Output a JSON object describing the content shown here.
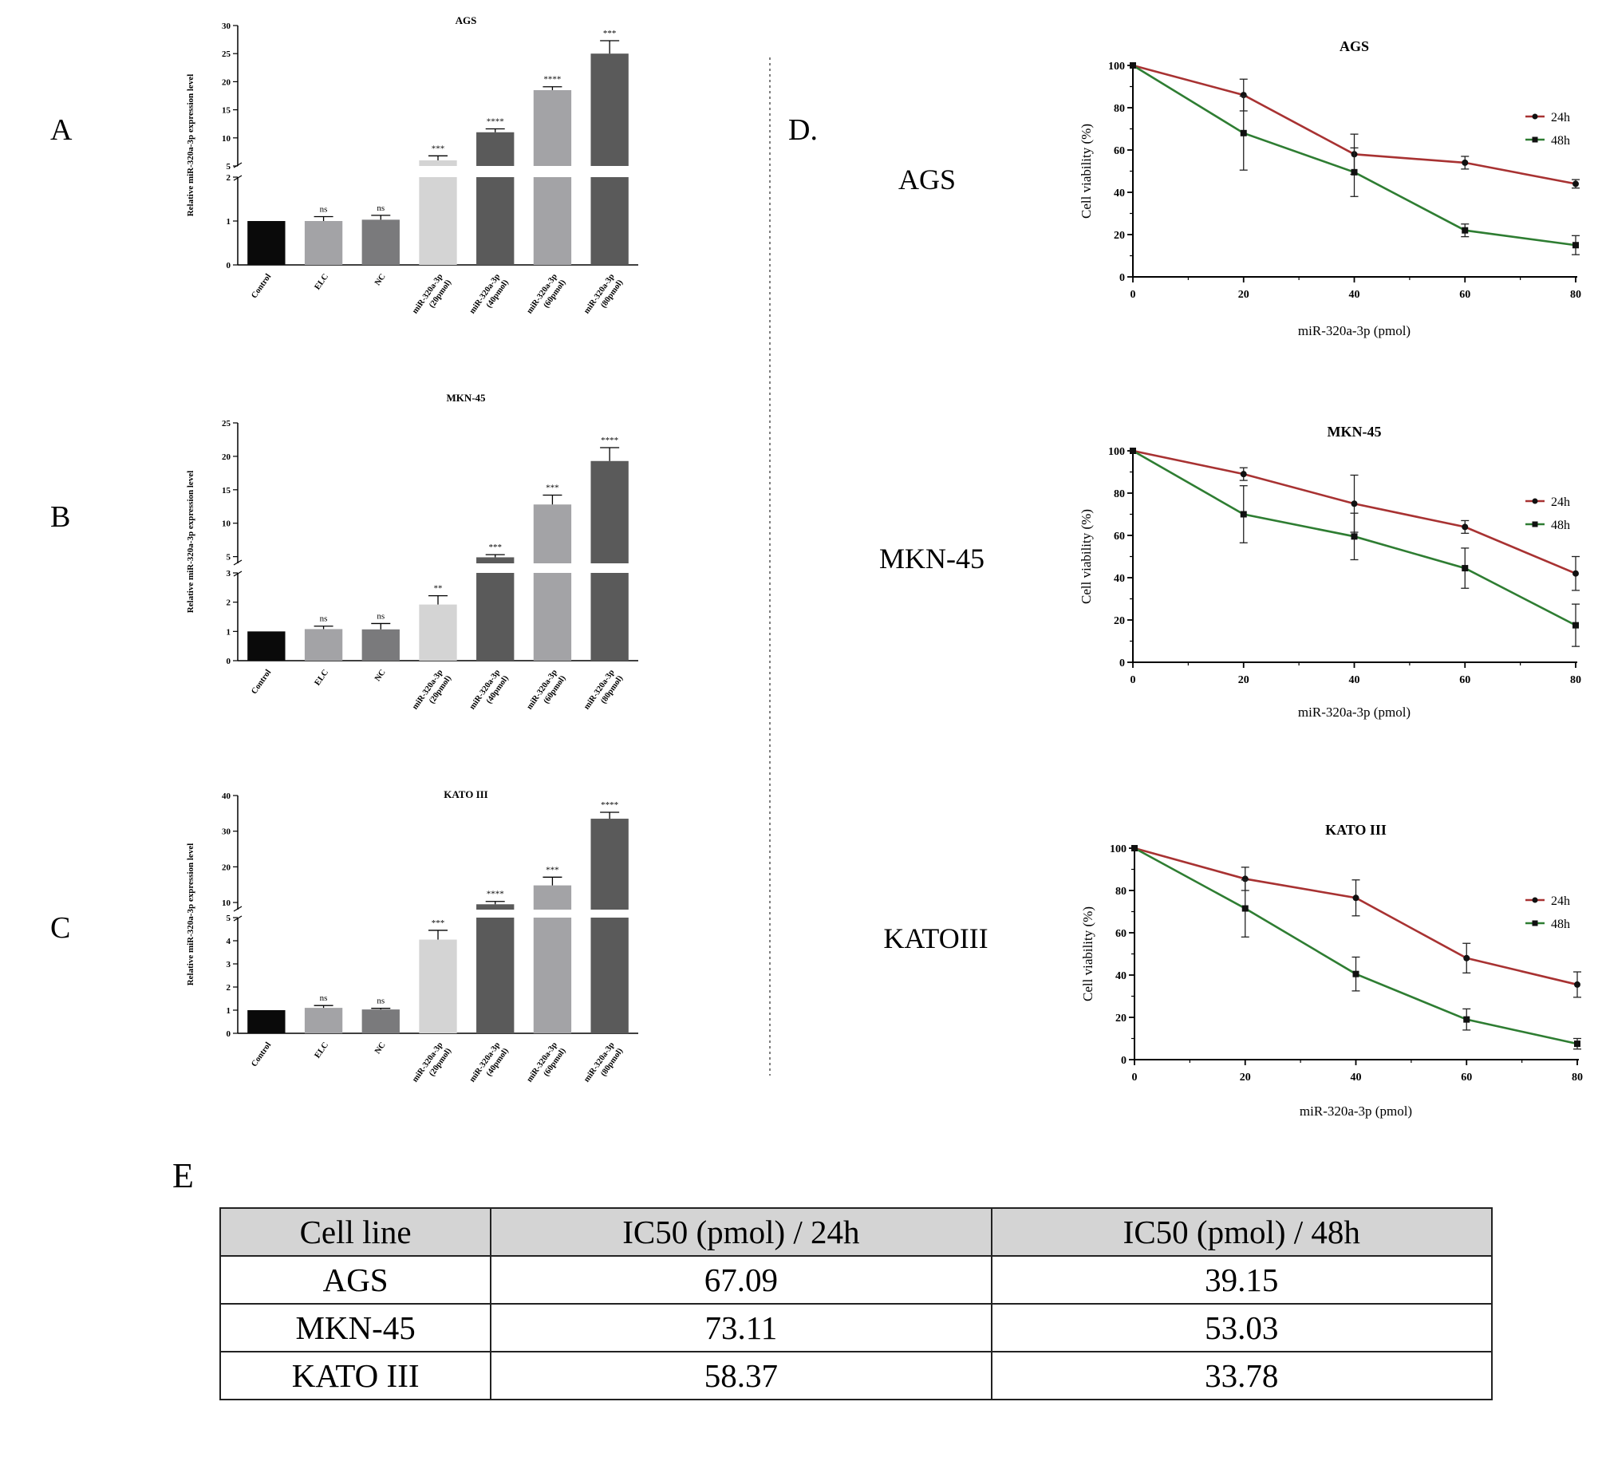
{
  "panel_letters": {
    "a": "A",
    "b": "B",
    "c": "C",
    "d": "D.",
    "e": "E"
  },
  "row_labels": [
    "AGS",
    "MKN-45",
    "KATOIII"
  ],
  "chart_data": [
    {
      "type": "bar",
      "panel": "A",
      "title": "AGS",
      "ylabel": "Relative miR-320a-3p expression level",
      "categories": [
        "Control",
        "ELC",
        "NC",
        "miR-320a-3p (20pmol)",
        "miR-320a-3p (40pmol)",
        "miR-320a-3p (60pmol)",
        "miR-320a-3p (80pmol)"
      ],
      "values": [
        1.0,
        1.0,
        1.03,
        6.0,
        11.0,
        18.5,
        25.0
      ],
      "errors": [
        0,
        0.1,
        0.1,
        0.8,
        0.6,
        0.6,
        2.3
      ],
      "significance": [
        "",
        "ns",
        "ns",
        "***",
        "****",
        "****",
        "***"
      ],
      "colors": [
        "#0a0a0a",
        "#a3a3a6",
        "#7a7a7c",
        "#d4d4d4",
        "#5a5a5a",
        "#a3a3a6",
        "#5a5a5a"
      ],
      "axis_break": {
        "lower": [
          0,
          2
        ],
        "upper": [
          5,
          30
        ]
      },
      "yticks_lower": [
        0,
        1,
        2
      ],
      "yticks_upper": [
        5,
        10,
        15,
        20,
        25,
        30
      ]
    },
    {
      "type": "bar",
      "panel": "B",
      "title": "MKN-45",
      "ylabel": "Relative miR-320a-3p expression level",
      "categories": [
        "Control",
        "ELC",
        "NC",
        "miR-320a-3p (20pmol)",
        "miR-320a-3p (40pmol)",
        "miR-320a-3p (60pmol)",
        "miR-320a-3p (80pmol)"
      ],
      "values": [
        1.0,
        1.08,
        1.07,
        1.92,
        4.9,
        12.8,
        19.3
      ],
      "errors": [
        0,
        0.1,
        0.2,
        0.3,
        0.4,
        1.4,
        2.0
      ],
      "significance": [
        "",
        "ns",
        "ns",
        "**",
        "***",
        "***",
        "****"
      ],
      "colors": [
        "#0a0a0a",
        "#a3a3a6",
        "#7a7a7c",
        "#d4d4d4",
        "#5a5a5a",
        "#a3a3a6",
        "#5a5a5a"
      ],
      "axis_break": {
        "lower": [
          0,
          3
        ],
        "upper": [
          4,
          25
        ]
      },
      "yticks_lower": [
        0,
        1,
        2,
        3
      ],
      "yticks_upper": [
        5,
        10,
        15,
        20,
        25
      ]
    },
    {
      "type": "bar",
      "panel": "C",
      "title": "KATO III",
      "ylabel": "Relative miR-320a-3p expression level",
      "categories": [
        "Control",
        "ELC",
        "NC",
        "miR-320a-3p (20pmol)",
        "miR-320a-3p (40pmol)",
        "miR-320a-3p (60pmol)",
        "miR-320a-3p (80pmol)"
      ],
      "values": [
        1.0,
        1.1,
        1.03,
        4.05,
        9.5,
        14.8,
        33.5
      ],
      "errors": [
        0,
        0.1,
        0.05,
        0.4,
        0.8,
        2.3,
        1.8
      ],
      "significance": [
        "",
        "ns",
        "ns",
        "***",
        "****",
        "***",
        "****"
      ],
      "colors": [
        "#0a0a0a",
        "#a3a3a6",
        "#7a7a7c",
        "#d4d4d4",
        "#5a5a5a",
        "#a3a3a6",
        "#5a5a5a"
      ],
      "axis_break": {
        "lower": [
          0,
          5
        ],
        "upper": [
          8,
          40
        ]
      },
      "yticks_lower": [
        0,
        1,
        2,
        3,
        4,
        5
      ],
      "yticks_upper": [
        10,
        20,
        30,
        40
      ]
    },
    {
      "type": "line",
      "panel": "D",
      "title": "AGS",
      "xlabel": "miR-320a-3p (pmol)",
      "ylabel": "Cell viability (%)",
      "x": [
        0,
        20,
        40,
        60,
        80
      ],
      "xlim": [
        0,
        80
      ],
      "ylim": [
        0,
        100
      ],
      "xticks": [
        0,
        20,
        40,
        60,
        80
      ],
      "yticks": [
        0,
        20,
        40,
        60,
        80,
        100
      ],
      "legend_position": "right",
      "series": [
        {
          "name": "24h",
          "color": "#a83232",
          "marker": "circle",
          "values": [
            100,
            86,
            58,
            54,
            44
          ],
          "errors": [
            0,
            7.5,
            9.5,
            3,
            2
          ]
        },
        {
          "name": "48h",
          "color": "#2e7d32",
          "marker": "square",
          "values": [
            100,
            68,
            49.5,
            22,
            15
          ],
          "errors": [
            0,
            17.5,
            11.5,
            3,
            4.5
          ]
        }
      ]
    },
    {
      "type": "line",
      "panel": "D",
      "title": "MKN-45",
      "xlabel": "miR-320a-3p (pmol)",
      "ylabel": "Cell viability (%)",
      "x": [
        0,
        20,
        40,
        60,
        80
      ],
      "xlim": [
        0,
        80
      ],
      "ylim": [
        0,
        100
      ],
      "xticks": [
        0,
        20,
        40,
        60,
        80
      ],
      "yticks": [
        0,
        20,
        40,
        60,
        80,
        100
      ],
      "legend_position": "right",
      "series": [
        {
          "name": "24h",
          "color": "#a83232",
          "marker": "circle",
          "values": [
            100,
            89,
            75,
            64,
            42
          ],
          "errors": [
            0,
            3,
            13.5,
            3,
            8
          ]
        },
        {
          "name": "48h",
          "color": "#2e7d32",
          "marker": "square",
          "values": [
            100,
            70,
            59.5,
            44.5,
            17.5
          ],
          "errors": [
            0,
            13.5,
            11,
            9.5,
            10
          ]
        }
      ]
    },
    {
      "type": "line",
      "panel": "D",
      "title": "KATO III",
      "xlabel": "miR-320a-3p (pmol)",
      "ylabel": "Cell viability (%)",
      "x": [
        0,
        20,
        40,
        60,
        80
      ],
      "xlim": [
        0,
        80
      ],
      "ylim": [
        0,
        100
      ],
      "xticks": [
        0,
        20,
        40,
        60,
        80
      ],
      "yticks": [
        0,
        20,
        40,
        60,
        80,
        100
      ],
      "legend_position": "right",
      "series": [
        {
          "name": "24h",
          "color": "#a83232",
          "marker": "circle",
          "values": [
            100,
            85.5,
            76.5,
            48,
            35.5
          ],
          "errors": [
            0,
            5.5,
            8.5,
            7,
            6
          ]
        },
        {
          "name": "48h",
          "color": "#2e7d32",
          "marker": "square",
          "values": [
            100,
            71.5,
            40.5,
            19,
            7.5
          ],
          "errors": [
            0,
            13.5,
            8,
            5,
            2.5
          ]
        }
      ]
    }
  ],
  "table": {
    "headers": [
      "Cell line",
      "IC50 (pmol) / 24h",
      "IC50 (pmol) / 48h"
    ],
    "rows": [
      [
        "AGS",
        "67.09",
        "39.15"
      ],
      [
        "MKN-45",
        "73.11",
        "53.03"
      ],
      [
        "KATO III",
        "58.37",
        "33.78"
      ]
    ]
  }
}
